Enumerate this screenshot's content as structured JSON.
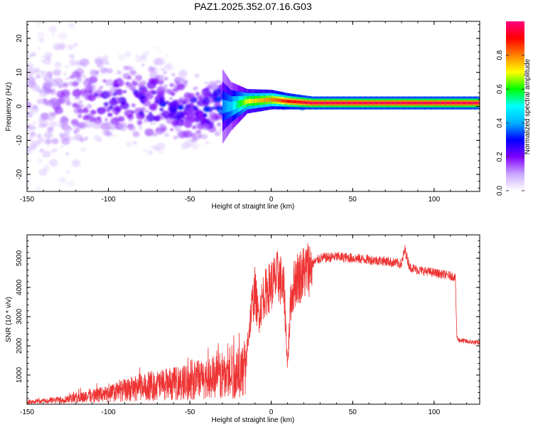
{
  "figure_title": "PAZ1.2025.352.07.16.G03",
  "chart_data": [
    {
      "type": "heatmap",
      "title": "PAZ1.2025.352.07.16.G03",
      "xlabel": "Height of straight line (km)",
      "ylabel": "Frequency (Hz)",
      "xlim": [
        -150,
        128
      ],
      "ylim": [
        -25,
        25
      ],
      "xticks": [
        -150,
        -100,
        -50,
        0,
        50,
        100
      ],
      "yticks": [
        -20,
        -10,
        0,
        10,
        20
      ],
      "colorbar": {
        "label": "Normalized spectral amplitude",
        "range": [
          0,
          1
        ],
        "ticks": [
          0.0,
          0.2,
          0.4,
          0.6,
          0.8
        ],
        "colors": [
          "#ffffff",
          "#c9a6ff",
          "#8000ff",
          "#0000ff",
          "#00b0ff",
          "#00ffff",
          "#00ff00",
          "#ffff00",
          "#ff8000",
          "#ff0000",
          "#ff0080"
        ]
      },
      "band": [
        {
          "x": -150,
          "center": 0,
          "spread": 18,
          "amp": 0.12
        },
        {
          "x": -125,
          "center": 1,
          "spread": 15,
          "amp": 0.15
        },
        {
          "x": -100,
          "center": 2,
          "spread": 8,
          "amp": 0.22
        },
        {
          "x": -75,
          "center": 1,
          "spread": 9,
          "amp": 0.24
        },
        {
          "x": -50,
          "center": -1,
          "spread": 7,
          "amp": 0.25
        },
        {
          "x": -35,
          "center": 0,
          "spread": 6,
          "amp": 0.3
        },
        {
          "x": -25,
          "center": 0,
          "spread": 3,
          "amp": 0.45
        },
        {
          "x": -15,
          "center": 1.5,
          "spread": 1.5,
          "amp": 0.7
        },
        {
          "x": 0,
          "center": 2,
          "spread": 1.2,
          "amp": 0.8
        },
        {
          "x": 10,
          "center": 1.5,
          "spread": 1,
          "amp": 0.9
        },
        {
          "x": 25,
          "center": 1,
          "spread": 0.8,
          "amp": 0.97
        },
        {
          "x": 75,
          "center": 1,
          "spread": 0.8,
          "amp": 0.97
        },
        {
          "x": 128,
          "center": 1,
          "spread": 0.8,
          "amp": 0.97
        }
      ]
    },
    {
      "type": "line",
      "xlabel": "Height of straight line (km)",
      "ylabel": "SNR (10 * v/v)",
      "xlim": [
        -150,
        128
      ],
      "ylim": [
        0,
        5800
      ],
      "xticks": [
        -150,
        -100,
        -50,
        0,
        50,
        100
      ],
      "yticks": [
        1000,
        2000,
        3000,
        4000,
        5000
      ],
      "series": [
        {
          "name": "SNR",
          "color": "#ee3333",
          "x": [
            -150,
            -140,
            -130,
            -120,
            -110,
            -100,
            -90,
            -80,
            -70,
            -60,
            -50,
            -40,
            -30,
            -20,
            -16,
            -12,
            -10,
            -8,
            -5,
            0,
            5,
            8,
            10,
            12,
            15,
            20,
            25,
            30,
            40,
            50,
            60,
            70,
            75,
            80,
            82,
            85,
            90,
            100,
            110,
            113,
            114,
            115,
            120,
            128
          ],
          "values": [
            100,
            130,
            170,
            260,
            350,
            420,
            560,
            680,
            760,
            820,
            900,
            1050,
            1150,
            1250,
            1450,
            3300,
            3900,
            3000,
            3700,
            4100,
            4400,
            3800,
            1300,
            3600,
            4300,
            4500,
            4800,
            5000,
            5050,
            5000,
            4950,
            4900,
            4850,
            4800,
            5300,
            4700,
            4600,
            4500,
            4400,
            4350,
            2300,
            2200,
            2150,
            2100
          ]
        }
      ]
    }
  ]
}
